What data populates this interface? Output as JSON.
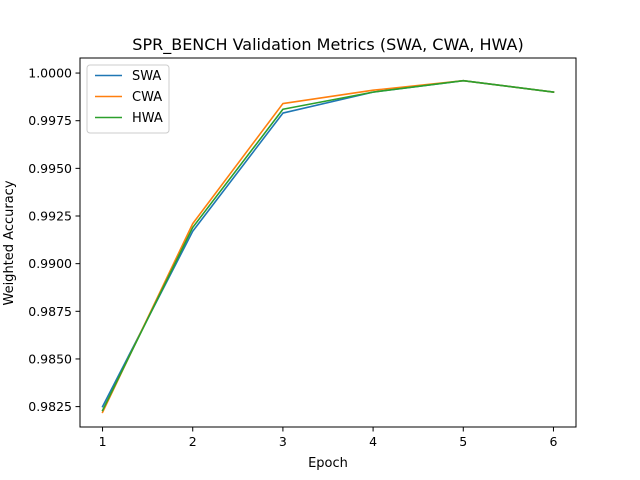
{
  "chart_data": {
    "type": "line",
    "title": "SPR_BENCH Validation Metrics (SWA, CWA, HWA)",
    "xlabel": "Epoch",
    "ylabel": "Weighted Accuracy",
    "x": [
      1,
      2,
      3,
      4,
      5,
      6
    ],
    "xticks": [
      "1",
      "2",
      "3",
      "4",
      "5",
      "6"
    ],
    "xlim": [
      0.75,
      6.25
    ],
    "ylim": [
      0.98143,
      1.00079
    ],
    "yticks": [
      "0.9825",
      "0.9850",
      "0.9875",
      "0.9900",
      "0.9925",
      "0.9950",
      "0.9975",
      "1.0000"
    ],
    "ytick_values": [
      0.9825,
      0.985,
      0.9875,
      0.99,
      0.9925,
      0.995,
      0.9975,
      1.0
    ],
    "grid": false,
    "legend_position": "upper-left",
    "series": [
      {
        "name": "SWA",
        "color": "#1f77b4",
        "values": [
          0.9825,
          0.9917,
          0.9979,
          0.999,
          0.9996,
          0.999
        ]
      },
      {
        "name": "CWA",
        "color": "#ff7f0e",
        "values": [
          0.9822,
          0.9921,
          0.9984,
          0.9991,
          0.9996,
          0.999
        ]
      },
      {
        "name": "HWA",
        "color": "#2ca02c",
        "values": [
          0.9823,
          0.9919,
          0.9981,
          0.999,
          0.9996,
          0.999
        ]
      }
    ]
  }
}
